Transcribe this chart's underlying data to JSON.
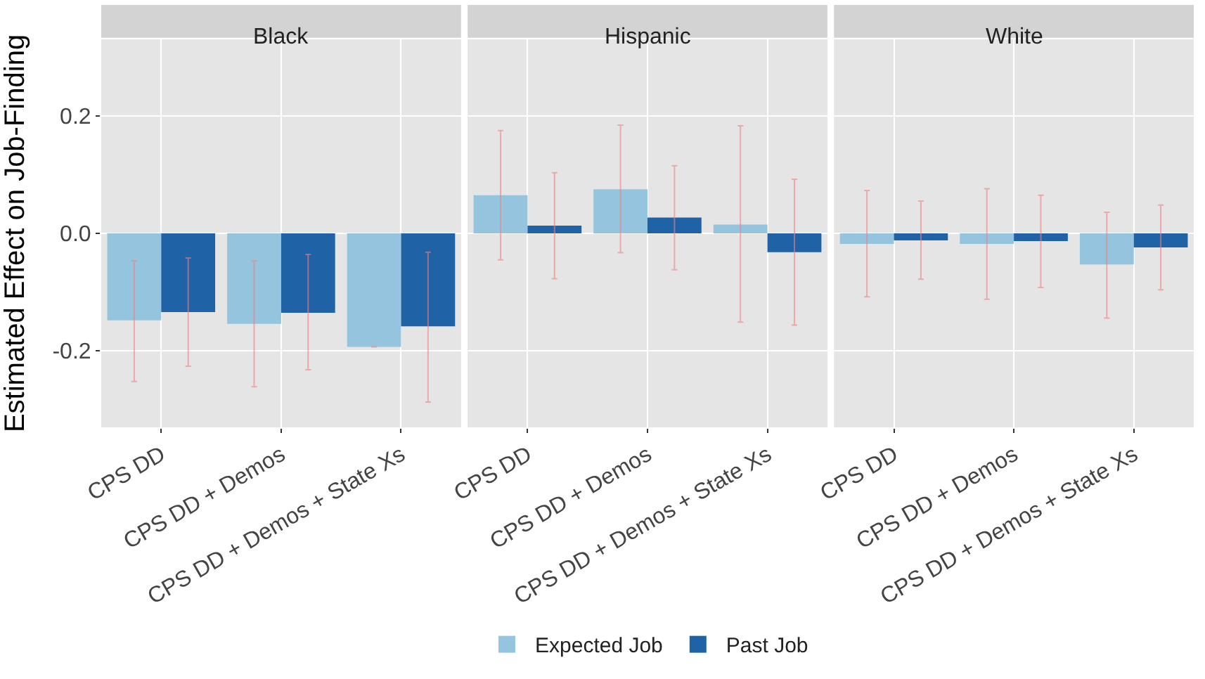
{
  "chart_data": [
    {
      "type": "bar",
      "title": "Black",
      "ylabel": "Estimated Effect on Job-Finding",
      "categories": [
        "CPS DD",
        "CPS DD + Demos",
        "CPS DD + Demos + State Xs"
      ],
      "ylim": [
        -0.33,
        0.33
      ],
      "yticks": [
        {
          "value": -0.2,
          "label": "-0.2"
        },
        {
          "value": 0,
          "label": "0.0"
        },
        {
          "value": 0.2,
          "label": "0.2"
        }
      ],
      "grid": true,
      "legend": "bottom",
      "series": [
        {
          "name": "Expected Job",
          "color": "#94c4de",
          "values": [
            -0.148,
            -0.154,
            -0.193
          ],
          "errors": [
            [
              -0.252,
              -0.047
            ],
            [
              -0.261,
              -0.047
            ],
            null
          ]
        },
        {
          "name": "Past Job",
          "color": "#1f63a6",
          "values": [
            -0.134,
            -0.135,
            -0.158
          ],
          "errors": [
            [
              -0.226,
              -0.042
            ],
            [
              -0.232,
              -0.036
            ],
            [
              -0.287,
              -0.032
            ]
          ]
        }
      ]
    },
    {
      "type": "bar",
      "title": "Hispanic",
      "categories": [
        "CPS DD",
        "CPS DD + Demos",
        "CPS DD + Demos + State Xs"
      ],
      "ylim": [
        -0.33,
        0.33
      ],
      "yticks": [
        {
          "value": -0.2,
          "label": null
        },
        {
          "value": 0,
          "label": null
        },
        {
          "value": 0.2,
          "label": null
        }
      ],
      "grid": true,
      "legend": "bottom",
      "tick_labels": "x",
      "series": [
        {
          "name": "Expected Job",
          "color": "#94c4de",
          "values": [
            0.065,
            0.075,
            0.015
          ],
          "errors": [
            [
              -0.045,
              0.175
            ],
            [
              -0.033,
              0.184
            ],
            [
              -0.151,
              0.183
            ]
          ]
        },
        {
          "name": "Past Job",
          "color": "#1f63a6",
          "values": [
            0.013,
            0.027,
            -0.032
          ],
          "errors": [
            [
              -0.077,
              0.103
            ],
            [
              -0.062,
              0.115
            ],
            [
              -0.156,
              0.092
            ]
          ]
        }
      ]
    },
    {
      "type": "bar",
      "title": "White",
      "categories": [
        "CPS DD",
        "CPS DD + Demos",
        "CPS DD + Demos + State Xs"
      ],
      "ylim": [
        -0.33,
        0.33
      ],
      "yticks": [
        {
          "value": -0.2,
          "label": null
        },
        {
          "value": 0,
          "label": null
        },
        {
          "value": 0.2,
          "label": null
        }
      ],
      "grid": true,
      "legend": "bottom",
      "tick_labels": "x",
      "series": [
        {
          "name": "Expected Job",
          "color": "#94c4de",
          "values": [
            -0.018,
            -0.018,
            -0.053
          ],
          "errors": [
            [
              -0.108,
              0.073
            ],
            [
              -0.112,
              0.076
            ],
            [
              -0.144,
              0.036
            ]
          ]
        },
        {
          "name": "Past Job",
          "color": "#1f63a6",
          "values": [
            -0.012,
            -0.013,
            -0.024
          ],
          "errors": [
            [
              -0.078,
              0.055
            ],
            [
              -0.092,
              0.065
            ],
            [
              -0.096,
              0.048
            ]
          ]
        }
      ]
    }
  ]
}
